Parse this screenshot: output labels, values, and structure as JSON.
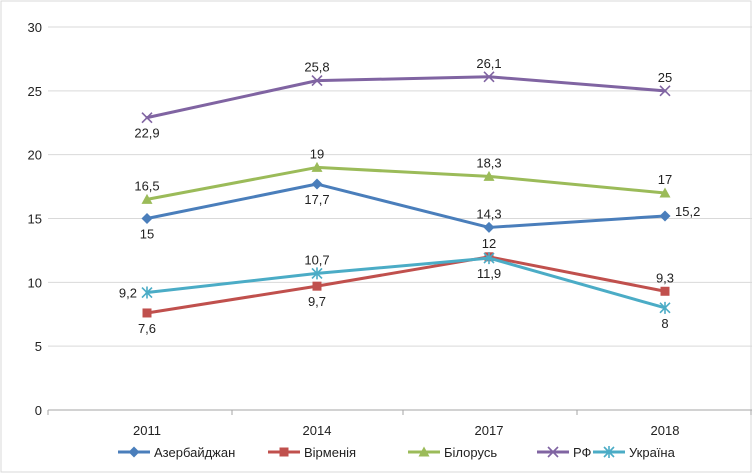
{
  "chart_data": {
    "type": "line",
    "title": "",
    "xlabel": "",
    "ylabel": "",
    "categories": [
      "2011",
      "2014",
      "2017",
      "2018"
    ],
    "ylim": [
      0,
      30
    ],
    "yticks": [
      0,
      5,
      10,
      15,
      20,
      25,
      30
    ],
    "grid": true,
    "legend": "bottom",
    "series": [
      {
        "name": "Азербайджан",
        "color": "#4a7ebb",
        "marker": "diamond",
        "values": [
          15,
          17.7,
          14.3,
          15.2
        ],
        "labels": [
          "15",
          "17,7",
          "14,3",
          "15,2"
        ],
        "label_pos": [
          "below",
          "below",
          "above",
          "right"
        ]
      },
      {
        "name": "Вірменія",
        "color": "#c0504d",
        "marker": "square",
        "values": [
          7.6,
          9.7,
          12,
          9.3
        ],
        "labels": [
          "7,6",
          "9,7",
          "12",
          "9,3"
        ],
        "label_pos": [
          "below",
          "below",
          "above",
          "above"
        ]
      },
      {
        "name": "Білорусь",
        "color": "#9bbb59",
        "marker": "triangle",
        "values": [
          16.5,
          19,
          18.3,
          17
        ],
        "labels": [
          "16,5",
          "19",
          "18,3",
          "17"
        ],
        "label_pos": [
          "above",
          "above",
          "above",
          "above"
        ]
      },
      {
        "name": "РФ",
        "color": "#8064a2",
        "marker": "x",
        "values": [
          22.9,
          25.8,
          26.1,
          25
        ],
        "labels": [
          "22,9",
          "25,8",
          "26,1",
          "25"
        ],
        "label_pos": [
          "below",
          "above",
          "above",
          "above"
        ]
      },
      {
        "name": "Україна",
        "color": "#4bacc6",
        "marker": "star",
        "values": [
          9.2,
          10.7,
          11.9,
          8
        ],
        "labels": [
          "9,2",
          "10,7",
          "11,9",
          "8"
        ],
        "label_pos": [
          "left",
          "above",
          "below",
          "below"
        ]
      }
    ]
  }
}
